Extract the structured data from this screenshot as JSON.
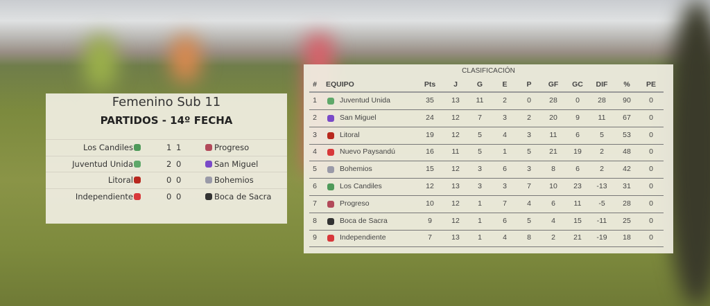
{
  "matches": {
    "title": "Femenino Sub 11",
    "subtitle": "PARTIDOS - 14º FECHA",
    "rows": [
      {
        "home": "Los Candiles",
        "home_icon": "#4f9a5a",
        "hs": "1",
        "as": "1",
        "away": "Progreso",
        "away_icon": "#b24a5a"
      },
      {
        "home": "Juventud Unida",
        "home_icon": "#5fa86a",
        "hs": "2",
        "as": "0",
        "away": "San Miguel",
        "away_icon": "#7a4ac8"
      },
      {
        "home": "Litoral",
        "home_icon": "#b8281e",
        "hs": "0",
        "as": "0",
        "away": "Bohemios",
        "away_icon": "#9a9aa8"
      },
      {
        "home": "Independiente",
        "home_icon": "#d8383a",
        "hs": "0",
        "as": "0",
        "away": "Boca de Sacra",
        "away_icon": "#333333"
      }
    ]
  },
  "standings": {
    "title": "CLASIFICACIÓN",
    "columns": [
      "#",
      "EQUIPO",
      "Pts",
      "J",
      "G",
      "E",
      "P",
      "GF",
      "GC",
      "DIF",
      "%",
      "PE"
    ],
    "rows": [
      [
        "1",
        "Juventud Unida",
        "35",
        "13",
        "11",
        "2",
        "0",
        "28",
        "0",
        "28",
        "90",
        "0"
      ],
      [
        "2",
        "San Miguel",
        "24",
        "12",
        "7",
        "3",
        "2",
        "20",
        "9",
        "11",
        "67",
        "0"
      ],
      [
        "3",
        "Litoral",
        "19",
        "12",
        "5",
        "4",
        "3",
        "11",
        "6",
        "5",
        "53",
        "0"
      ],
      [
        "4",
        "Nuevo Paysandú",
        "16",
        "11",
        "5",
        "1",
        "5",
        "21",
        "19",
        "2",
        "48",
        "0"
      ],
      [
        "5",
        "Bohemios",
        "15",
        "12",
        "3",
        "6",
        "3",
        "8",
        "6",
        "2",
        "42",
        "0"
      ],
      [
        "6",
        "Los Candiles",
        "12",
        "13",
        "3",
        "3",
        "7",
        "10",
        "23",
        "-13",
        "31",
        "0"
      ],
      [
        "7",
        "Progreso",
        "10",
        "12",
        "1",
        "7",
        "4",
        "6",
        "11",
        "-5",
        "28",
        "0"
      ],
      [
        "8",
        "Boca de Sacra",
        "9",
        "12",
        "1",
        "6",
        "5",
        "4",
        "15",
        "-11",
        "25",
        "0"
      ],
      [
        "9",
        "Independiente",
        "7",
        "13",
        "1",
        "4",
        "8",
        "2",
        "21",
        "-19",
        "18",
        "0"
      ]
    ],
    "icons": [
      "#5fa86a",
      "#7a4ac8",
      "#b8281e",
      "#d8383a",
      "#9a9aa8",
      "#4f9a5a",
      "#b24a5a",
      "#333333",
      "#d8383a"
    ]
  }
}
